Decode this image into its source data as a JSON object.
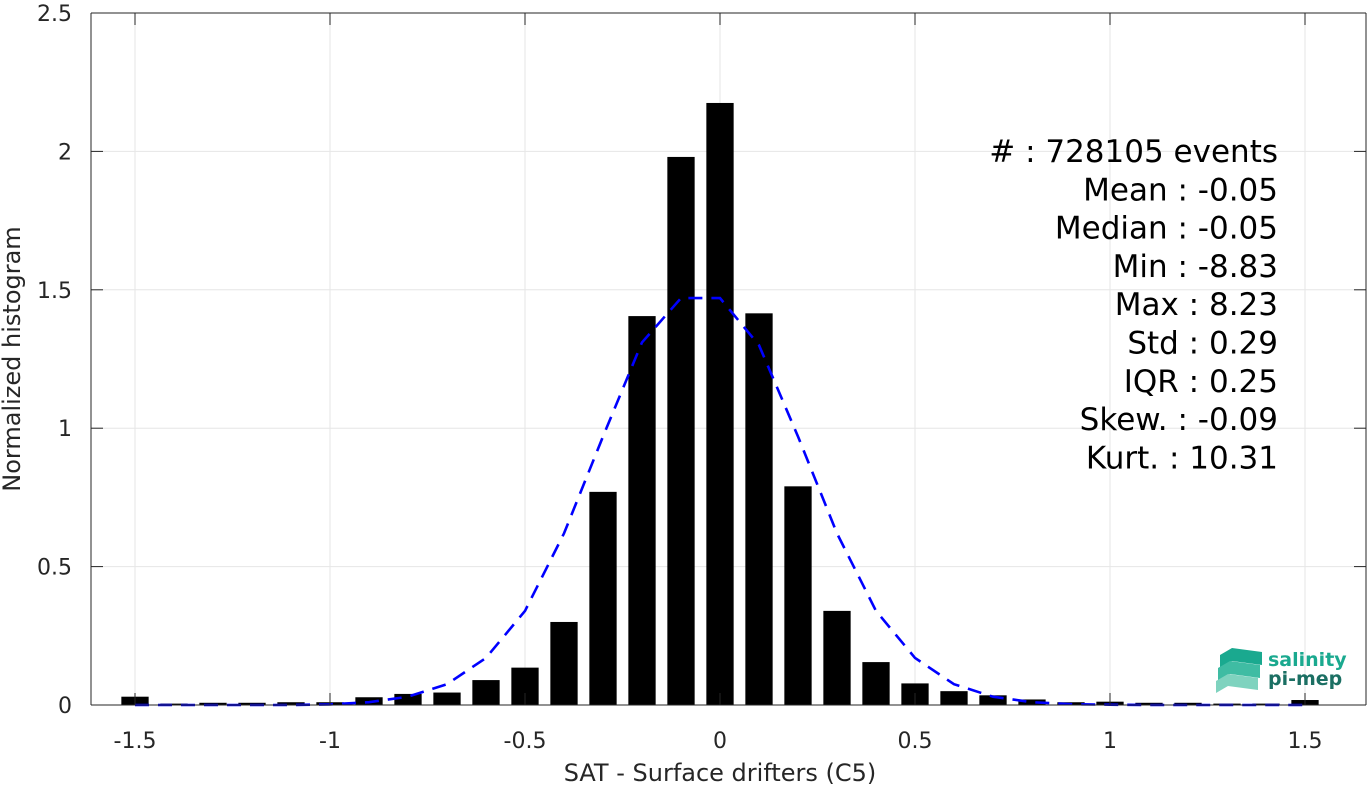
{
  "chart_data": {
    "type": "bar",
    "xlabel": "SAT - Surface drifters (C5)",
    "ylabel": "Normalized histogram",
    "xlim": [
      -1.6,
      1.6
    ],
    "ylim": [
      0,
      2.5
    ],
    "xticks": [
      -1.5,
      -1,
      -0.5,
      0,
      0.5,
      1,
      1.5
    ],
    "xtick_labels": [
      "-1.5",
      "-1",
      "-0.5",
      "0",
      "0.5",
      "1",
      "1.5"
    ],
    "yticks": [
      0,
      0.5,
      1,
      1.5,
      2,
      2.5
    ],
    "ytick_labels": [
      "0",
      "0.5",
      "1",
      "1.5",
      "2",
      "2.5"
    ],
    "grid": true,
    "bar_color": "#000000",
    "bar_width": 0.07,
    "series": [
      {
        "type": "bar",
        "x": [
          -1.5,
          -1.4,
          -1.3,
          -1.2,
          -1.1,
          -1.0,
          -0.9,
          -0.8,
          -0.7,
          -0.6,
          -0.5,
          -0.4,
          -0.3,
          -0.2,
          -0.1,
          0.0,
          0.1,
          0.2,
          0.3,
          0.4,
          0.5,
          0.6,
          0.7,
          0.8,
          0.9,
          1.0,
          1.1,
          1.2,
          1.3,
          1.4,
          1.5
        ],
        "values": [
          0.03,
          0.005,
          0.008,
          0.008,
          0.01,
          0.01,
          0.028,
          0.04,
          0.045,
          0.09,
          0.135,
          0.3,
          0.77,
          1.405,
          1.98,
          2.175,
          1.415,
          0.79,
          0.34,
          0.155,
          0.078,
          0.05,
          0.035,
          0.02,
          0.01,
          0.012,
          0.008,
          0.008,
          0.005,
          0.005,
          0.018
        ]
      },
      {
        "type": "line",
        "style": "dashed",
        "color": "#0000ff",
        "x": [
          -1.5,
          -1.4,
          -1.3,
          -1.2,
          -1.1,
          -1.0,
          -0.9,
          -0.8,
          -0.7,
          -0.6,
          -0.5,
          -0.4,
          -0.3,
          -0.2,
          -0.1,
          0.0,
          0.1,
          0.2,
          0.3,
          0.4,
          0.5,
          0.6,
          0.7,
          0.8,
          0.9,
          1.0,
          1.1,
          1.2,
          1.3,
          1.4,
          1.5
        ],
        "values": [
          0.0,
          0.0,
          0.0,
          0.0,
          0.0,
          0.002,
          0.01,
          0.03,
          0.075,
          0.17,
          0.34,
          0.62,
          0.97,
          1.31,
          1.47,
          1.47,
          1.3,
          0.97,
          0.62,
          0.34,
          0.17,
          0.075,
          0.03,
          0.01,
          0.003,
          0.001,
          0.0,
          0.0,
          0.0,
          0.0,
          0.0
        ]
      }
    ],
    "stats": [
      {
        "label": "#  : 728105 events"
      },
      {
        "label": "Mean : -0.05"
      },
      {
        "label": "Median : -0.05"
      },
      {
        "label": "Min : -8.83"
      },
      {
        "label": "Max : 8.23"
      },
      {
        "label": "Std : 0.29"
      },
      {
        "label": "IQR : 0.25"
      },
      {
        "label": "Skew. : -0.09"
      },
      {
        "label": "Kurt. : 10.31"
      }
    ]
  },
  "logo": {
    "line1": "salinity",
    "line2": "pi-mep",
    "color1": "#1aa98f",
    "color2": "#1b6f63"
  }
}
